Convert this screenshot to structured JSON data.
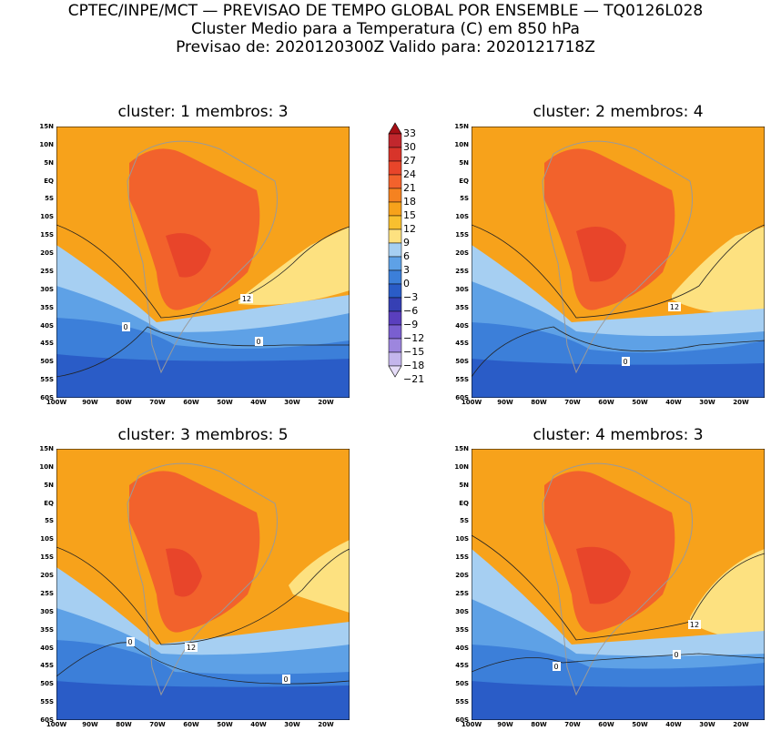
{
  "header": {
    "line1": "CPTEC/INPE/MCT — PREVISAO DE TEMPO GLOBAL POR ENSEMBLE — TQ0126L028",
    "line2": "Cluster Medio para a Temperatura (C) em 850 hPa",
    "line3": "Previsao de: 2020120300Z   Valido para: 2020121718Z"
  },
  "panels": [
    {
      "title": "cluster: 1   membros: 3",
      "labels": [
        "12",
        "0",
        "0"
      ]
    },
    {
      "title": "cluster: 2   membros: 4",
      "labels": [
        "12",
        "0"
      ]
    },
    {
      "title": "cluster: 3   membros: 5",
      "labels": [
        "12",
        "0",
        "0"
      ]
    },
    {
      "title": "cluster: 4   membros: 3",
      "labels": [
        "12",
        "0",
        "0"
      ]
    }
  ],
  "lat_ticks": [
    "15N",
    "10N",
    "5N",
    "EQ",
    "5S",
    "10S",
    "15S",
    "20S",
    "25S",
    "30S",
    "35S",
    "40S",
    "45S",
    "50S",
    "55S",
    "60S"
  ],
  "lon_ticks": [
    "100W",
    "90W",
    "80W",
    "70W",
    "60W",
    "50W",
    "40W",
    "30W",
    "20W"
  ],
  "colorbar": {
    "labels": [
      "33",
      "30",
      "27",
      "24",
      "21",
      "18",
      "15",
      "12",
      "9",
      "6",
      "3",
      "0",
      "−3",
      "−6",
      "−9",
      "−12",
      "−15",
      "−18",
      "−21"
    ],
    "colors": [
      "#a50f15",
      "#c1272d",
      "#d8342a",
      "#e8452a",
      "#f2622c",
      "#f58220",
      "#f7a21b",
      "#f8c02f",
      "#fde180",
      "#a6cff2",
      "#5ea1e6",
      "#3c7fd9",
      "#2a5cc7",
      "#3640b4",
      "#5a3fbe",
      "#7a5fd0",
      "#9d86de",
      "#c4b6ec",
      "#e6ddf8"
    ]
  },
  "colors": {
    "hot": "#e8452a",
    "warm": "#f58220",
    "orange": "#f7a21b",
    "yellow": "#fde180",
    "light_blue": "#a6cff2",
    "blue": "#5ea1e6",
    "mid_blue": "#3c7fd9",
    "deep_blue": "#2a5cc7",
    "purple": "#4a3fb8"
  }
}
